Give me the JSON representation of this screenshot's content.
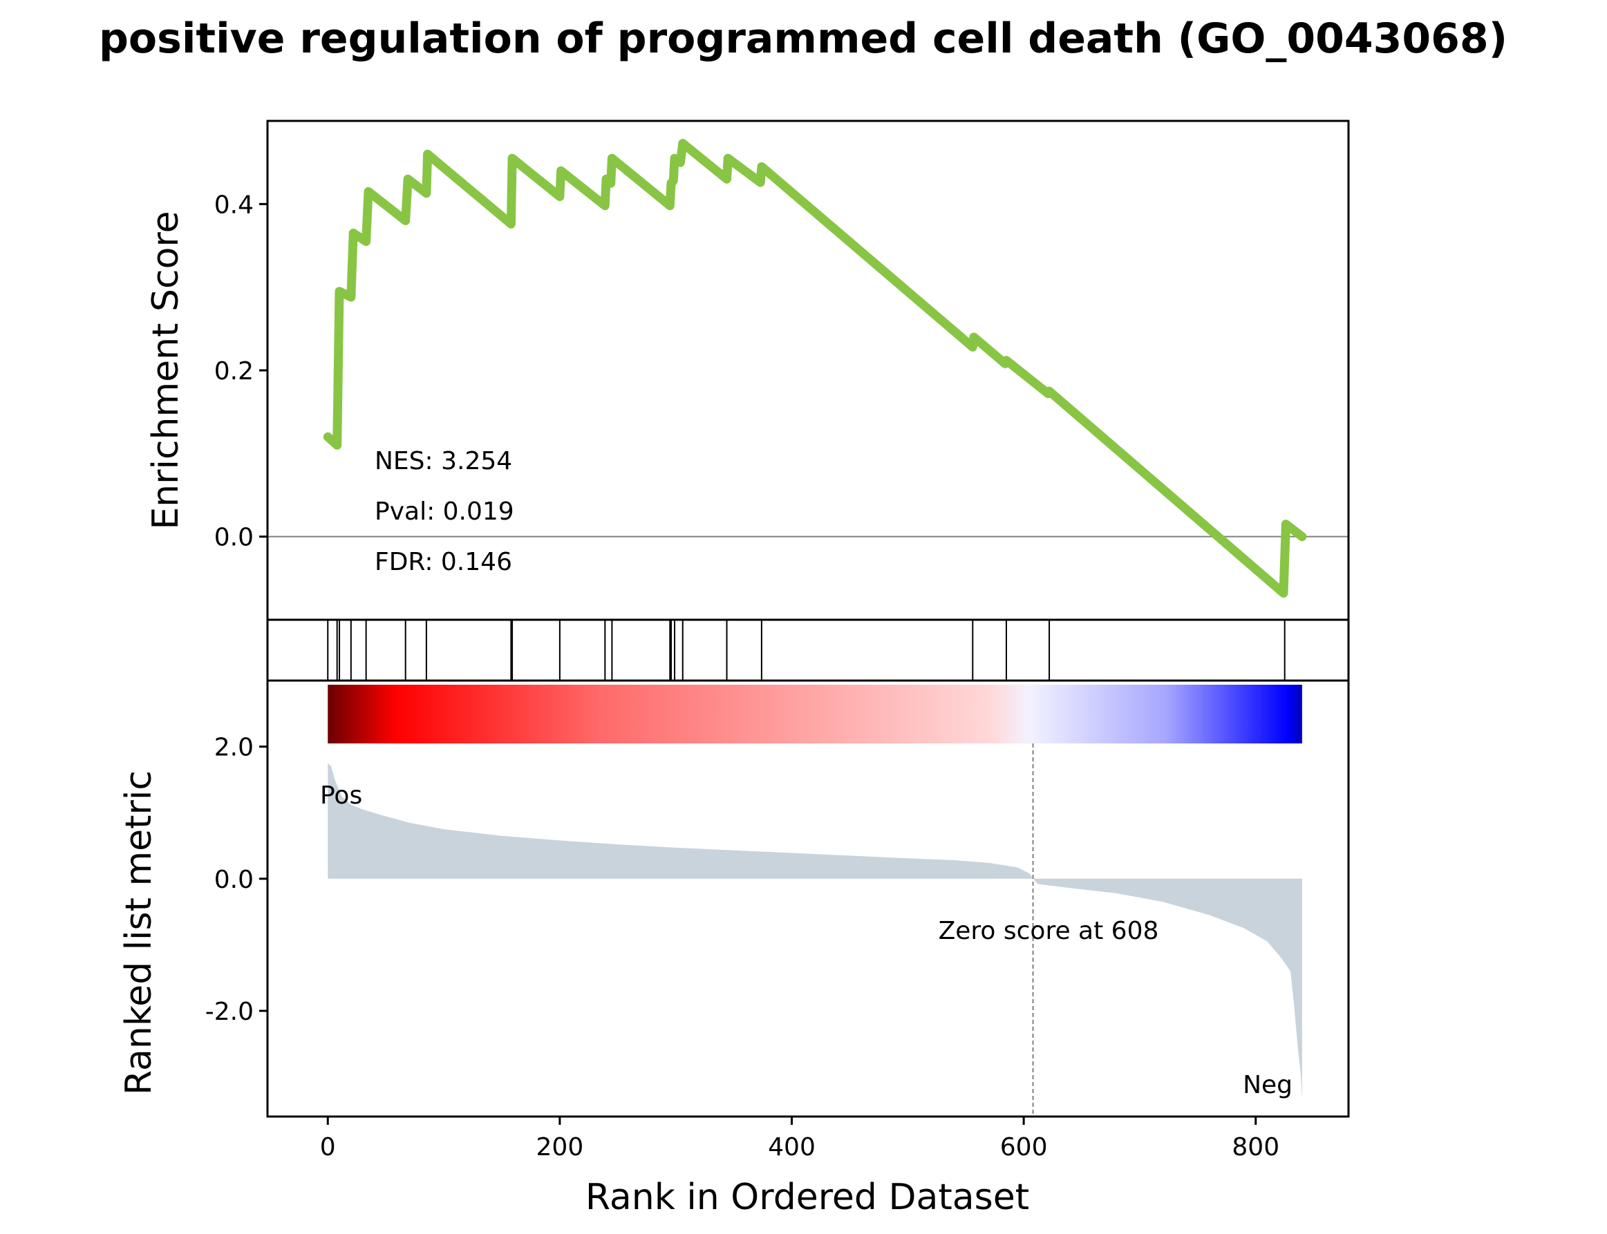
{
  "colors": {
    "es_line": "#88c544",
    "metric_fill": "#c9d3dc",
    "pos_label": "#ff0000",
    "neg_label": "#0000ff",
    "zero_line": "#808080",
    "gradient": [
      "#6b0000",
      "#ff0000",
      "#ff6a6a",
      "#ffd8d8",
      "#f2f2ff",
      "#a6a6ff",
      "#0000ff",
      "#0000b8"
    ]
  },
  "chart_data": {
    "type": "line",
    "title": "positive regulation of programmed cell death (GO_0043068)",
    "xlabel": "Rank in Ordered Dataset",
    "xlim": [
      -52,
      880
    ],
    "xticks": [
      0,
      200,
      400,
      600,
      800
    ],
    "enrichment": {
      "ylabel": "Enrichment Score",
      "ylim": [
        -0.1,
        0.5
      ],
      "yticks": [
        {
          "value": 0.4,
          "label": "0.4"
        },
        {
          "value": 0.2,
          "label": "0.2"
        },
        {
          "value": 0.0,
          "label": "0.0"
        }
      ],
      "stats": {
        "nes": "NES: 3.254",
        "pval": "Pval: 0.019",
        "fdr": "FDR: 0.146"
      },
      "points": [
        [
          0,
          0.12
        ],
        [
          8,
          0.11
        ],
        [
          10,
          0.295
        ],
        [
          20,
          0.288
        ],
        [
          22,
          0.365
        ],
        [
          33,
          0.355
        ],
        [
          35,
          0.415
        ],
        [
          67,
          0.38
        ],
        [
          69,
          0.43
        ],
        [
          85,
          0.413
        ],
        [
          86,
          0.46
        ],
        [
          158,
          0.376
        ],
        [
          159,
          0.455
        ],
        [
          200,
          0.409
        ],
        [
          201,
          0.44
        ],
        [
          239,
          0.398
        ],
        [
          240,
          0.43
        ],
        [
          244,
          0.425
        ],
        [
          245,
          0.455
        ],
        [
          295,
          0.398
        ],
        [
          296,
          0.425
        ],
        [
          298,
          0.428
        ],
        [
          299,
          0.455
        ],
        [
          304,
          0.45
        ],
        [
          306,
          0.473
        ],
        [
          344,
          0.43
        ],
        [
          345,
          0.455
        ],
        [
          373,
          0.426
        ],
        [
          374,
          0.445
        ],
        [
          556,
          0.228
        ],
        [
          557,
          0.24
        ],
        [
          584,
          0.208
        ],
        [
          585,
          0.212
        ],
        [
          621,
          0.172
        ],
        [
          622,
          0.175
        ],
        [
          824,
          -0.068
        ],
        [
          826,
          0.015
        ],
        [
          840,
          0.0
        ]
      ]
    },
    "hits": [
      0,
      8,
      10,
      20,
      33,
      67,
      85,
      158,
      159,
      200,
      239,
      245,
      295,
      296,
      299,
      306,
      344,
      374,
      556,
      585,
      622,
      825
    ],
    "ranked_metric": {
      "ylabel": "Ranked list metric",
      "ylim": [
        -3.6,
        3.0
      ],
      "yticks": [
        {
          "value": 2.0,
          "label": "2.0"
        },
        {
          "value": 0.0,
          "label": "0.0"
        },
        {
          "value": -2.0,
          "label": "-2.0"
        }
      ],
      "pos_label": "Pos",
      "neg_label": "Neg",
      "zero_score_label": "Zero score at 608",
      "zero_rank": 608,
      "n_genes": 840,
      "points": [
        [
          0,
          1.75
        ],
        [
          3,
          1.7
        ],
        [
          6,
          1.5
        ],
        [
          12,
          1.25
        ],
        [
          20,
          1.12
        ],
        [
          30,
          1.05
        ],
        [
          45,
          0.97
        ],
        [
          70,
          0.85
        ],
        [
          100,
          0.75
        ],
        [
          150,
          0.65
        ],
        [
          200,
          0.58
        ],
        [
          250,
          0.52
        ],
        [
          300,
          0.47
        ],
        [
          350,
          0.43
        ],
        [
          400,
          0.39
        ],
        [
          450,
          0.35
        ],
        [
          500,
          0.31
        ],
        [
          540,
          0.28
        ],
        [
          570,
          0.24
        ],
        [
          595,
          0.17
        ],
        [
          605,
          0.08
        ],
        [
          608,
          0.0
        ],
        [
          612,
          -0.08
        ],
        [
          640,
          -0.14
        ],
        [
          680,
          -0.22
        ],
        [
          720,
          -0.35
        ],
        [
          760,
          -0.55
        ],
        [
          790,
          -0.75
        ],
        [
          810,
          -0.95
        ],
        [
          822,
          -1.2
        ],
        [
          830,
          -1.4
        ],
        [
          833,
          -1.9
        ],
        [
          836,
          -2.5
        ],
        [
          839,
          -3.0
        ],
        [
          840,
          -3.35
        ]
      ]
    }
  }
}
